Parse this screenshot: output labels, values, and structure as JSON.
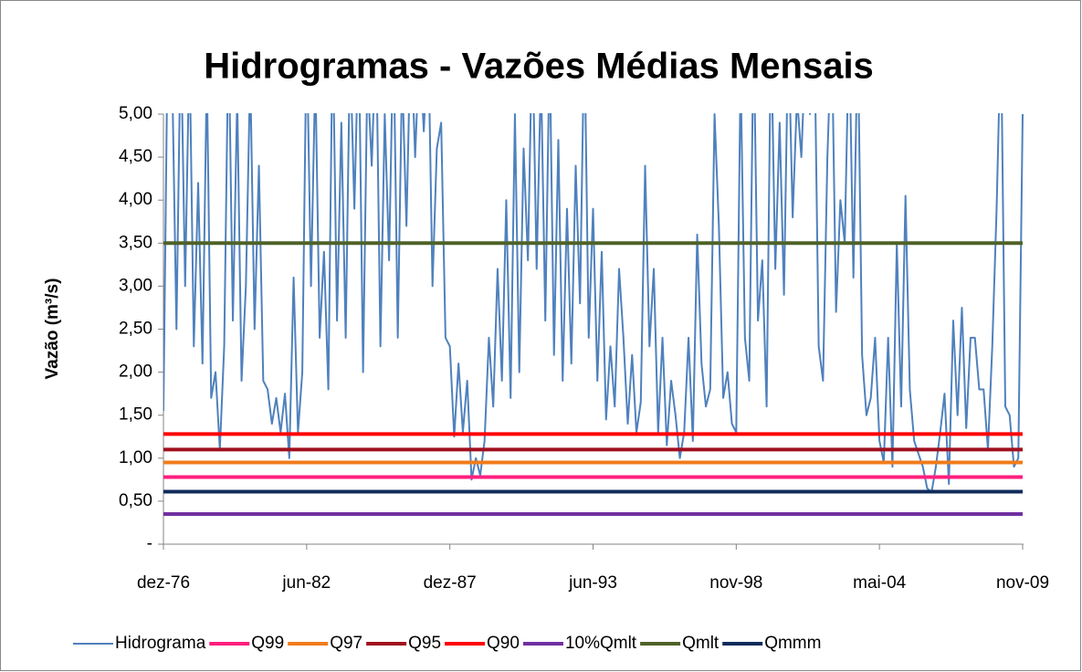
{
  "chart_data": {
    "type": "line",
    "title": "Hidrogramas - Vazões Médias Mensais",
    "y_label": "Vazão (m³/s)",
    "ylim": [
      0,
      5
    ],
    "yticks": [
      {
        "value": 0,
        "label": "-"
      },
      {
        "value": 0.5,
        "label": "0,50"
      },
      {
        "value": 1,
        "label": "1,00"
      },
      {
        "value": 1.5,
        "label": "1,50"
      },
      {
        "value": 2,
        "label": "2,00"
      },
      {
        "value": 2.5,
        "label": "2,50"
      },
      {
        "value": 3,
        "label": "3,00"
      },
      {
        "value": 3.5,
        "label": "3,50"
      },
      {
        "value": 4,
        "label": "4,00"
      },
      {
        "value": 4.5,
        "label": "4,50"
      },
      {
        "value": 5,
        "label": "5,00"
      }
    ],
    "categories": [
      "dez-76",
      null,
      null,
      null,
      null,
      null,
      null,
      null,
      null,
      null,
      null,
      null,
      null,
      null,
      null,
      null,
      null,
      null,
      null,
      null,
      null,
      null,
      null,
      null,
      null,
      null,
      null,
      null,
      null,
      null,
      null,
      null,
      null,
      "jun-82",
      null,
      null,
      null,
      null,
      null,
      null,
      null,
      null,
      null,
      null,
      null,
      null,
      null,
      null,
      null,
      null,
      null,
      null,
      null,
      null,
      null,
      null,
      null,
      null,
      null,
      null,
      null,
      null,
      null,
      null,
      null,
      null,
      "dez-87",
      null,
      null,
      null,
      null,
      null,
      null,
      null,
      null,
      null,
      null,
      null,
      null,
      null,
      null,
      null,
      null,
      null,
      null,
      null,
      null,
      null,
      null,
      null,
      null,
      null,
      null,
      null,
      null,
      null,
      null,
      null,
      null,
      "jun-93",
      null,
      null,
      null,
      null,
      null,
      null,
      null,
      null,
      null,
      null,
      null,
      null,
      null,
      null,
      null,
      null,
      null,
      null,
      null,
      null,
      null,
      null,
      null,
      null,
      null,
      null,
      null,
      null,
      null,
      null,
      null,
      null,
      "nov-98",
      null,
      null,
      null,
      null,
      null,
      null,
      null,
      null,
      null,
      null,
      null,
      null,
      null,
      null,
      null,
      null,
      null,
      null,
      null,
      null,
      null,
      null,
      null,
      null,
      null,
      null,
      null,
      null,
      null,
      null,
      null,
      null,
      "mai-04",
      null,
      null,
      null,
      null,
      null,
      null,
      null,
      null,
      null,
      null,
      null,
      null,
      null,
      null,
      null,
      null,
      null,
      null,
      null,
      null,
      null,
      null,
      null,
      null,
      null,
      null,
      null,
      null,
      null,
      null,
      null,
      null,
      "nov-09"
    ],
    "series": [
      {
        "name": "Hidrograma",
        "color": "#4f81bd",
        "values": [
          1.55,
          6.0,
          5.5,
          2.5,
          6.0,
          3.0,
          5.8,
          2.3,
          4.2,
          2.1,
          5.5,
          1.7,
          2.0,
          1.1,
          2.3,
          6.0,
          2.6,
          5.2,
          1.9,
          3.0,
          5.5,
          2.5,
          4.4,
          1.9,
          1.8,
          1.4,
          1.7,
          1.3,
          1.75,
          1.0,
          3.1,
          1.3,
          2.0,
          6.0,
          3.0,
          5.5,
          2.4,
          3.4,
          1.8,
          6.0,
          2.6,
          4.9,
          2.4,
          5.8,
          3.9,
          6.0,
          2.0,
          5.5,
          4.4,
          6.0,
          2.3,
          5.0,
          3.3,
          6.0,
          2.4,
          5.5,
          3.7,
          6.0,
          4.5,
          5.8,
          4.8,
          6.0,
          3.0,
          4.6,
          4.9,
          2.4,
          2.3,
          1.25,
          2.1,
          1.3,
          1.9,
          0.75,
          1.0,
          0.8,
          1.2,
          2.4,
          1.6,
          3.2,
          1.9,
          4.0,
          1.7,
          5.0,
          2.0,
          4.6,
          3.3,
          6.0,
          3.2,
          5.5,
          2.6,
          5.8,
          2.2,
          4.7,
          1.9,
          3.9,
          2.1,
          4.4,
          2.8,
          6.0,
          2.4,
          3.9,
          1.9,
          3.4,
          1.45,
          2.3,
          1.6,
          3.2,
          2.4,
          1.4,
          2.2,
          1.3,
          1.65,
          4.4,
          2.3,
          3.2,
          1.3,
          2.4,
          1.15,
          1.9,
          1.5,
          1.0,
          1.3,
          2.4,
          1.2,
          3.6,
          2.1,
          1.6,
          1.8,
          5.0,
          3.7,
          1.7,
          2.0,
          1.4,
          1.3,
          5.5,
          2.4,
          1.9,
          6.0,
          2.6,
          3.3,
          1.6,
          6.0,
          3.2,
          4.9,
          2.9,
          6.0,
          3.8,
          5.2,
          4.5,
          5.8,
          5.0,
          6.0,
          2.3,
          1.9,
          4.5,
          6.0,
          2.7,
          4.0,
          3.5,
          6.0,
          3.1,
          6.0,
          2.2,
          1.5,
          1.7,
          2.4,
          1.2,
          0.95,
          2.4,
          0.9,
          3.5,
          1.6,
          4.05,
          1.8,
          1.2,
          1.05,
          0.9,
          0.65,
          0.6,
          0.9,
          1.3,
          1.75,
          0.7,
          2.6,
          1.5,
          2.75,
          1.35,
          2.4,
          2.4,
          1.8,
          1.8,
          1.1,
          2.3,
          3.9,
          6.0,
          1.6,
          1.5,
          0.9,
          1.0,
          5.0
        ]
      },
      {
        "name": "Q99",
        "color": "#ff1f7e",
        "value": 0.78
      },
      {
        "name": "Q97",
        "color": "#f07c1c",
        "value": 0.95
      },
      {
        "name": "Q95",
        "color": "#a0101e",
        "value": 1.1
      },
      {
        "name": "Q90",
        "color": "#ff0000",
        "value": 1.28
      },
      {
        "name": "10%Qmlt",
        "color": "#7030a0",
        "value": 0.35
      },
      {
        "name": "Qmlt",
        "color": "#4f6228",
        "value": 3.5
      },
      {
        "name": "Qmmm",
        "color": "#0f2b5b",
        "value": 0.61
      }
    ]
  }
}
